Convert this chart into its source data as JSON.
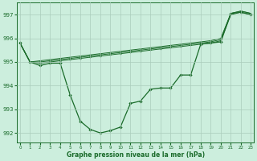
{
  "xlabel": "Graphe pression niveau de la mer (hPa)",
  "background_color": "#cceedd",
  "grid_color": "#aaccbb",
  "line_color": "#1a6b2a",
  "x_ticks": [
    0,
    1,
    2,
    3,
    4,
    5,
    6,
    7,
    8,
    9,
    10,
    11,
    12,
    13,
    14,
    15,
    16,
    17,
    18,
    19,
    20,
    21,
    22,
    23
  ],
  "ylim": [
    991.6,
    997.5
  ],
  "yticks": [
    992,
    993,
    994,
    995,
    996,
    997
  ],
  "series_main": [
    995.8,
    995.0,
    994.85,
    994.95,
    994.95,
    993.6,
    992.5,
    992.15,
    992.0,
    992.1,
    992.25,
    993.25,
    993.35,
    993.85,
    993.9,
    993.9,
    994.45,
    994.45,
    995.75,
    995.8,
    995.85,
    997.05,
    997.1,
    997.0
  ],
  "series_env1": [
    995.8,
    995.0,
    994.95,
    995.0,
    995.05,
    995.1,
    995.15,
    995.2,
    995.25,
    995.3,
    995.35,
    995.4,
    995.45,
    995.5,
    995.55,
    995.6,
    995.65,
    995.7,
    995.75,
    995.8,
    995.9,
    997.0,
    997.1,
    997.0
  ],
  "series_env2": [
    995.8,
    995.0,
    995.0,
    995.05,
    995.1,
    995.15,
    995.2,
    995.25,
    995.3,
    995.35,
    995.4,
    995.45,
    995.5,
    995.55,
    995.6,
    995.65,
    995.7,
    995.75,
    995.8,
    995.85,
    995.95,
    997.05,
    997.15,
    997.05
  ],
  "series_env3": [
    995.8,
    995.0,
    995.05,
    995.1,
    995.15,
    995.2,
    995.25,
    995.3,
    995.35,
    995.4,
    995.45,
    995.5,
    995.55,
    995.6,
    995.65,
    995.7,
    995.75,
    995.8,
    995.85,
    995.9,
    996.0,
    997.05,
    997.15,
    997.05
  ]
}
